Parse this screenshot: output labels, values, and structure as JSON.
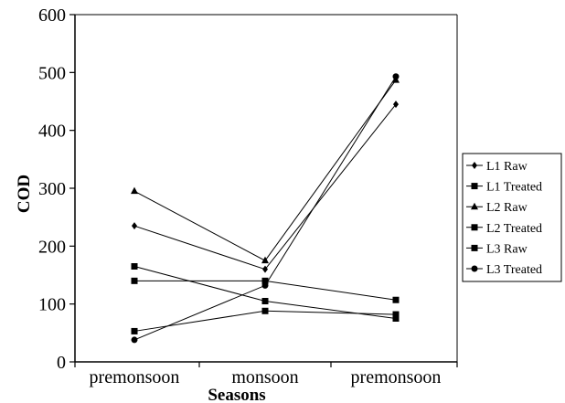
{
  "chart_data": {
    "type": "line",
    "title": "",
    "xlabel": "Seasons",
    "ylabel": "COD",
    "ylim": [
      0,
      600
    ],
    "yticks": [
      0,
      100,
      200,
      300,
      400,
      500,
      600
    ],
    "categories": [
      "premonsoon",
      "monsoon",
      "premonsoon"
    ],
    "grid": false,
    "legend_position": "right",
    "series": [
      {
        "name": "L1 Raw",
        "marker": "diamond",
        "values": [
          235,
          160,
          445
        ]
      },
      {
        "name": "L1 Treated",
        "marker": "square",
        "values": [
          53,
          88,
          82
        ]
      },
      {
        "name": "L2 Raw",
        "marker": "triangle",
        "values": [
          295,
          175,
          487
        ]
      },
      {
        "name": "L2 Treated",
        "marker": "square",
        "values": [
          140,
          140,
          107
        ]
      },
      {
        "name": "L3 Raw",
        "marker": "square",
        "values": [
          165,
          105,
          75
        ]
      },
      {
        "name": "L3 Treated",
        "marker": "circle",
        "values": [
          38,
          132,
          493
        ]
      }
    ]
  }
}
